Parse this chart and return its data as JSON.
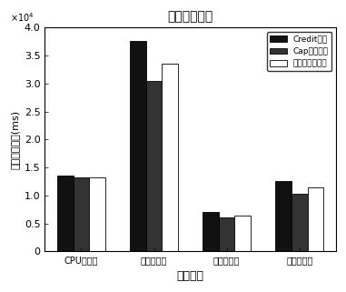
{
  "title": "算法性能测试",
  "xlabel": "任务类型",
  "ylabel": "任务运行时间(ms)",
  "categories": [
    "CPU密集型",
    "内存密集型",
    "磁盘密集型",
    "网络密集型"
  ],
  "series": [
    {
      "label": "Credit算法",
      "color": "#111111",
      "values": [
        1.36,
        3.76,
        0.7,
        1.26
      ]
    },
    {
      "label": "Cap调度算法",
      "color": "#333333",
      "values": [
        1.32,
        3.05,
        0.61,
        1.04
      ]
    },
    {
      "label": "时间片调度算法",
      "color": "#ffffff",
      "values": [
        1.32,
        3.35,
        0.64,
        1.15
      ]
    }
  ],
  "ylim": [
    0,
    4.0
  ],
  "yticks": [
    0,
    0.5,
    1.0,
    1.5,
    2.0,
    2.5,
    3.0,
    3.5,
    4.0
  ],
  "bar_width": 0.22,
  "background_color": "#ffffff",
  "legend_loc": "upper right",
  "figsize": [
    3.81,
    3.21
  ],
  "dpi": 100
}
